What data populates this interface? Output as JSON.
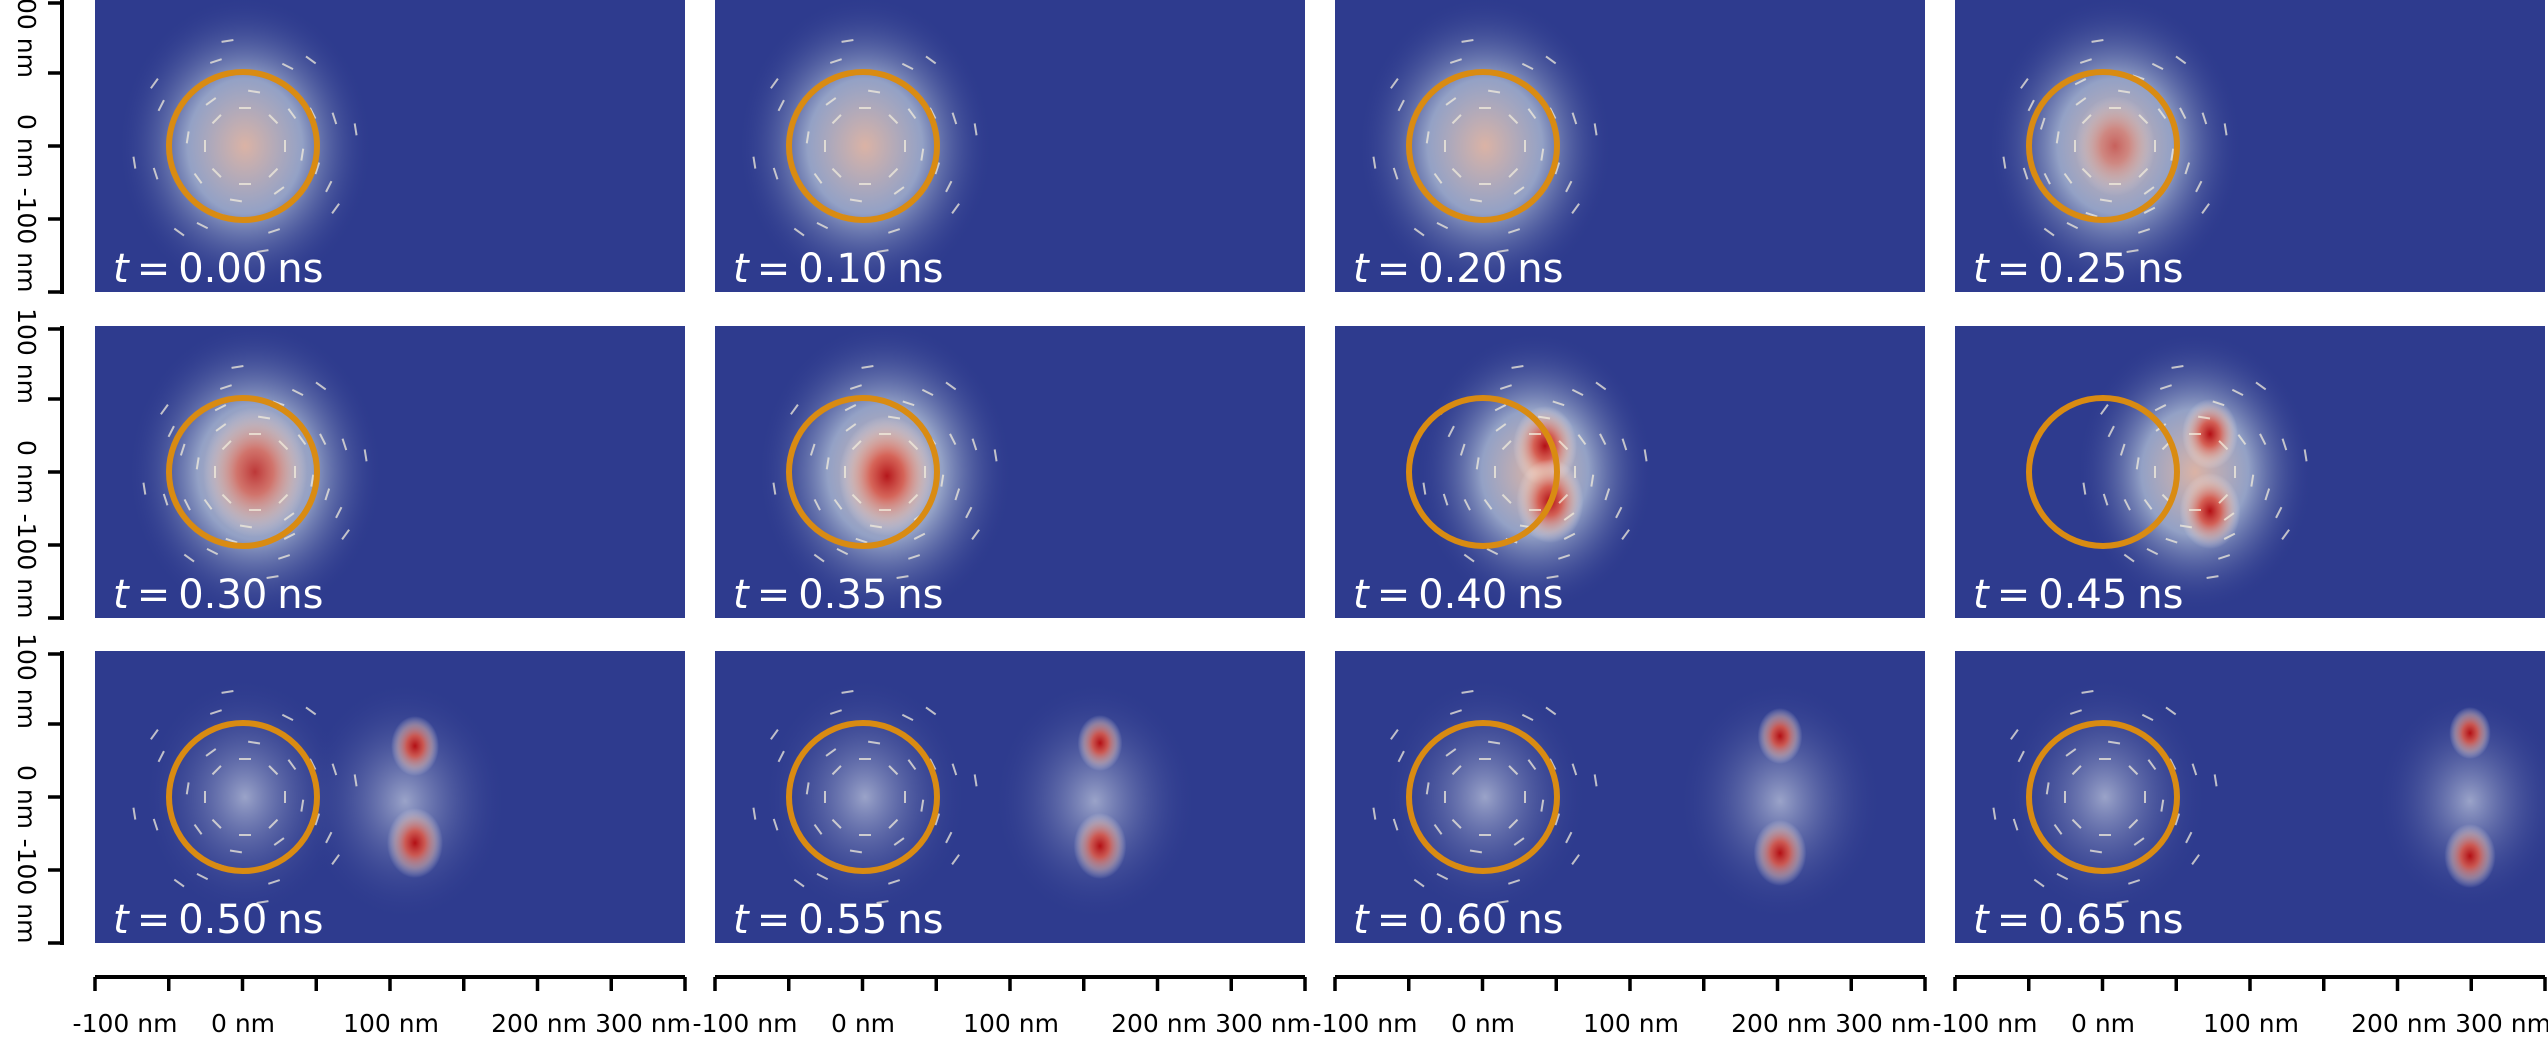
{
  "panels": [
    {
      "time": "0.00",
      "unit": "ns"
    },
    {
      "time": "0.10",
      "unit": "ns"
    },
    {
      "time": "0.20",
      "unit": "ns"
    },
    {
      "time": "0.25",
      "unit": "ns"
    },
    {
      "time": "0.30",
      "unit": "ns"
    },
    {
      "time": "0.35",
      "unit": "ns"
    },
    {
      "time": "0.40",
      "unit": "ns"
    },
    {
      "time": "0.45",
      "unit": "ns"
    },
    {
      "time": "0.50",
      "unit": "ns"
    },
    {
      "time": "0.55",
      "unit": "ns"
    },
    {
      "time": "0.60",
      "unit": "ns"
    },
    {
      "time": "0.65",
      "unit": "ns"
    }
  ],
  "time_symbol": "t",
  "equals_sign": "=",
  "y_axis": {
    "tick_labels": [
      "100 nm",
      "0 nm",
      "-100 nm"
    ]
  },
  "x_axis": {
    "tick_labels": [
      "-100 nm",
      "0 nm",
      "100 nm",
      "200 nm",
      "300 nm"
    ]
  },
  "colors": {
    "background": "#2e3b8e",
    "ring": "#d98b12",
    "core": "#b30f14",
    "arrows": "#f2ecdc"
  }
}
